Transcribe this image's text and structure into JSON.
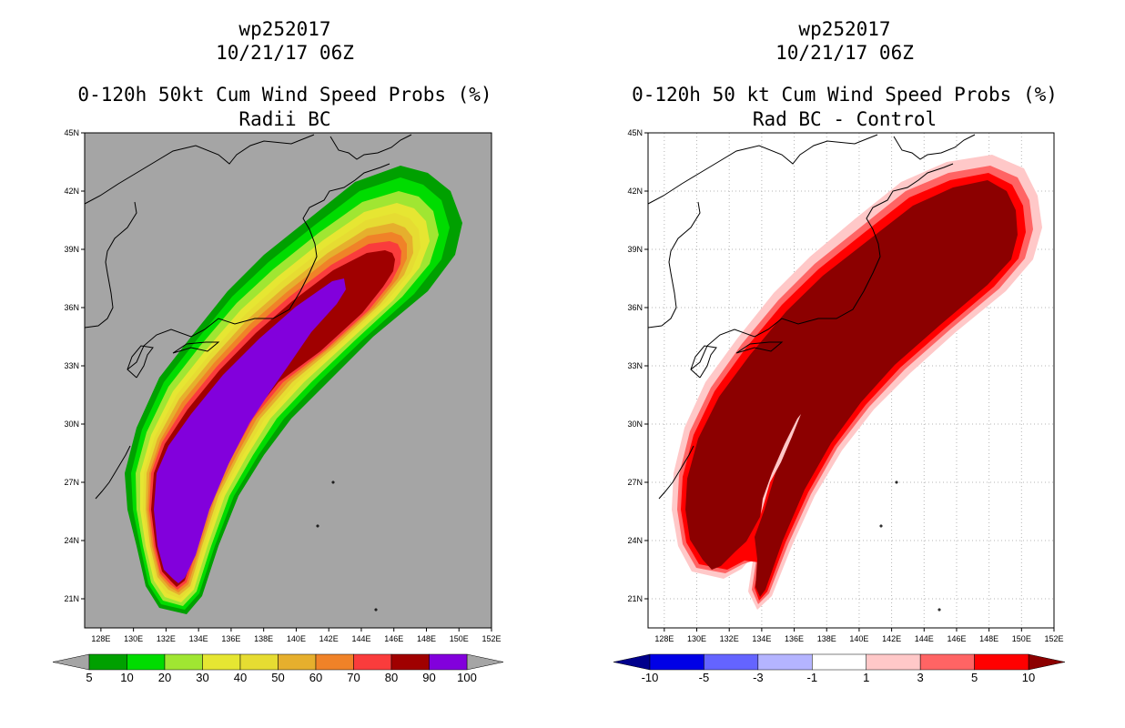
{
  "chart_data": [
    {
      "type": "heatmap",
      "storm_id": "wp252017",
      "datetime": "10/21/17 06Z",
      "title": "0-120h 50kt Cum Wind Speed Probs (%)",
      "subtitle": "Radii BC",
      "background_color": "#a5a5a5",
      "x_ticks": [
        "128E",
        "130E",
        "132E",
        "134E",
        "136E",
        "138E",
        "140E",
        "142E",
        "144E",
        "146E",
        "148E",
        "150E",
        "152E"
      ],
      "y_ticks": [
        "45N",
        "42N",
        "39N",
        "36N",
        "33N",
        "30N",
        "27N",
        "24N",
        "21N"
      ],
      "xlim": [
        127,
        152
      ],
      "ylim": [
        19.5,
        45
      ],
      "grid": false,
      "colorbar": {
        "labels": [
          "5",
          "10",
          "20",
          "30",
          "40",
          "50",
          "60",
          "70",
          "80",
          "90",
          "100"
        ],
        "colors": [
          "#00a000",
          "#00dc00",
          "#a0e632",
          "#e6e632",
          "#e6dc32",
          "#e6af2d",
          "#f08228",
          "#fa3c3c",
          "#a00000",
          "#8200dc"
        ],
        "below_color": "#a5a5a5",
        "above_color": "#a5a5a5"
      },
      "contour_levels": [
        5,
        10,
        20,
        30,
        40,
        50,
        60,
        70,
        80,
        90,
        100
      ]
    },
    {
      "type": "heatmap",
      "storm_id": "wp252017",
      "datetime": "10/21/17 06Z",
      "title": "0-120h 50 kt Cum Wind Speed Probs (%)",
      "subtitle": "Rad BC - Control",
      "background_color": "#ffffff",
      "x_ticks": [
        "128E",
        "130E",
        "132E",
        "134E",
        "136E",
        "138E",
        "140E",
        "142E",
        "144E",
        "146E",
        "148E",
        "150E",
        "152E"
      ],
      "y_ticks": [
        "45N",
        "42N",
        "39N",
        "36N",
        "33N",
        "30N",
        "27N",
        "24N",
        "21N"
      ],
      "xlim": [
        127,
        152
      ],
      "ylim": [
        19.5,
        45
      ],
      "grid": true,
      "colorbar": {
        "labels": [
          "-10",
          "-5",
          "-3",
          "-1",
          "1",
          "3",
          "5",
          "10"
        ],
        "colors": [
          "#0000e6",
          "#6464ff",
          "#b4b4ff",
          "#ffffff",
          "#ffc8c8",
          "#ff6464",
          "#ff0000"
        ],
        "below_color": "#00008c",
        "above_color": "#8c0000"
      },
      "contour_levels": [
        1,
        3,
        5,
        10
      ]
    }
  ]
}
